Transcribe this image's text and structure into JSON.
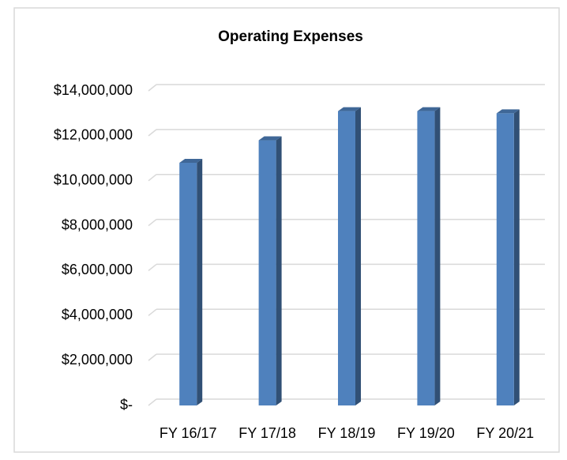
{
  "chart_data": {
    "type": "bar",
    "title": "Operating Expenses",
    "categories": [
      "FY 16/17",
      "FY 17/18",
      "FY 18/19",
      "FY 19/20",
      "FY 20/21"
    ],
    "values": [
      10800000,
      11800000,
      13100000,
      13100000,
      13000000
    ],
    "color": "#4f81bd",
    "ylim": [
      0,
      14000000
    ],
    "yticks": [
      {
        "value": 0,
        "label": "$-"
      },
      {
        "value": 2000000,
        "label": "$2,000,000"
      },
      {
        "value": 4000000,
        "label": "$4,000,000"
      },
      {
        "value": 6000000,
        "label": "$6,000,000"
      },
      {
        "value": 8000000,
        "label": "$8,000,000"
      },
      {
        "value": 10000000,
        "label": "$10,000,000"
      },
      {
        "value": 12000000,
        "label": "$12,000,000"
      },
      {
        "value": 14000000,
        "label": "$14,000,000"
      }
    ],
    "grid": true
  }
}
